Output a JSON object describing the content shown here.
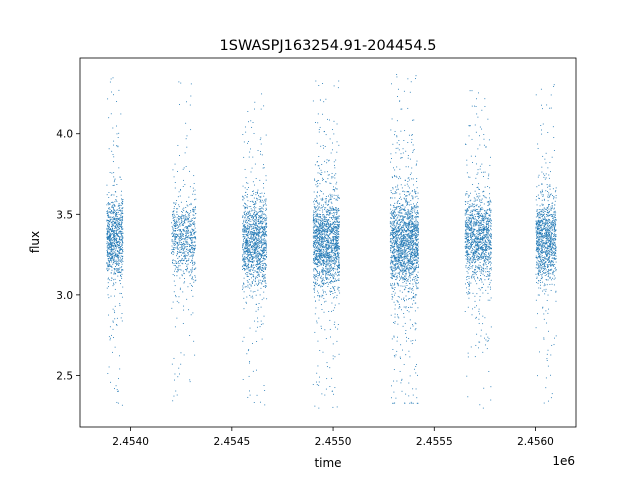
{
  "chart_data": {
    "type": "scatter",
    "title": "1SWASPJ163254.91-204454.5",
    "xlabel": "time",
    "ylabel": "flux",
    "x_offset_label": "1e6",
    "x_ticks": [
      2.454,
      2.4545,
      2.455,
      2.4555,
      2.456
    ],
    "x_tick_labels": [
      "2.4540",
      "2.4545",
      "2.4550",
      "2.4555",
      "2.4560"
    ],
    "y_ticks": [
      2.5,
      3.0,
      3.5,
      4.0
    ],
    "y_tick_labels": [
      "2.5",
      "3.0",
      "3.5",
      "4.0"
    ],
    "xlim": [
      2.45375,
      2.4562
    ],
    "ylim": [
      2.18,
      4.47
    ],
    "grid": false,
    "marker_color": "#1f77b4",
    "observing_seasons": [
      {
        "x_start": 2.45388,
        "x_end": 2.45396,
        "median_flux": 3.35,
        "core_spread": 0.13,
        "min_flux": 2.31,
        "max_flux": 4.35,
        "density": 5
      },
      {
        "x_start": 2.4542,
        "x_end": 2.45432,
        "median_flux": 3.35,
        "core_spread": 0.12,
        "min_flux": 2.33,
        "max_flux": 4.38,
        "density": 4
      },
      {
        "x_start": 2.45455,
        "x_end": 2.45467,
        "median_flux": 3.33,
        "core_spread": 0.14,
        "min_flux": 2.32,
        "max_flux": 4.25,
        "density": 7
      },
      {
        "x_start": 2.4549,
        "x_end": 2.45503,
        "median_flux": 3.33,
        "core_spread": 0.14,
        "min_flux": 2.3,
        "max_flux": 4.33,
        "density": 9
      },
      {
        "x_start": 2.45528,
        "x_end": 2.45542,
        "median_flux": 3.33,
        "core_spread": 0.15,
        "min_flux": 2.33,
        "max_flux": 4.37,
        "density": 10
      },
      {
        "x_start": 2.45565,
        "x_end": 2.45578,
        "median_flux": 3.35,
        "core_spread": 0.13,
        "min_flux": 2.3,
        "max_flux": 4.27,
        "density": 7
      },
      {
        "x_start": 2.456,
        "x_end": 2.4561,
        "median_flux": 3.35,
        "core_spread": 0.13,
        "min_flux": 2.32,
        "max_flux": 4.35,
        "density": 6
      }
    ]
  }
}
